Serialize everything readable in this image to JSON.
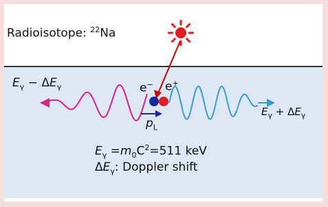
{
  "header": {
    "text": "Radioisotope: ",
    "mass_number": "22",
    "element": "Na"
  },
  "left_photon": {
    "symbol": "E",
    "index": "γ",
    "operator": " − Δ",
    "symbol2": "E",
    "index2": "γ"
  },
  "electron": {
    "symbol": "e",
    "charge": "−"
  },
  "positron": {
    "symbol": "e",
    "charge": "+"
  },
  "momentum": {
    "symbol": "p",
    "index": "L"
  },
  "right_photon": {
    "symbol": "E",
    "index": "γ",
    "operator": " + Δ",
    "symbol2": "E",
    "index2": "γ"
  },
  "equation": {
    "lhs": "E",
    "lhs_index": "γ",
    "eq1": " =",
    "mass": "m",
    "mass_index": "0",
    "light": "C",
    "power": "2",
    "eq2": "=511 keV"
  },
  "note": {
    "prefix": "Δ",
    "symbol": "E",
    "index": "γ",
    "text": ": Doppler shift"
  }
}
